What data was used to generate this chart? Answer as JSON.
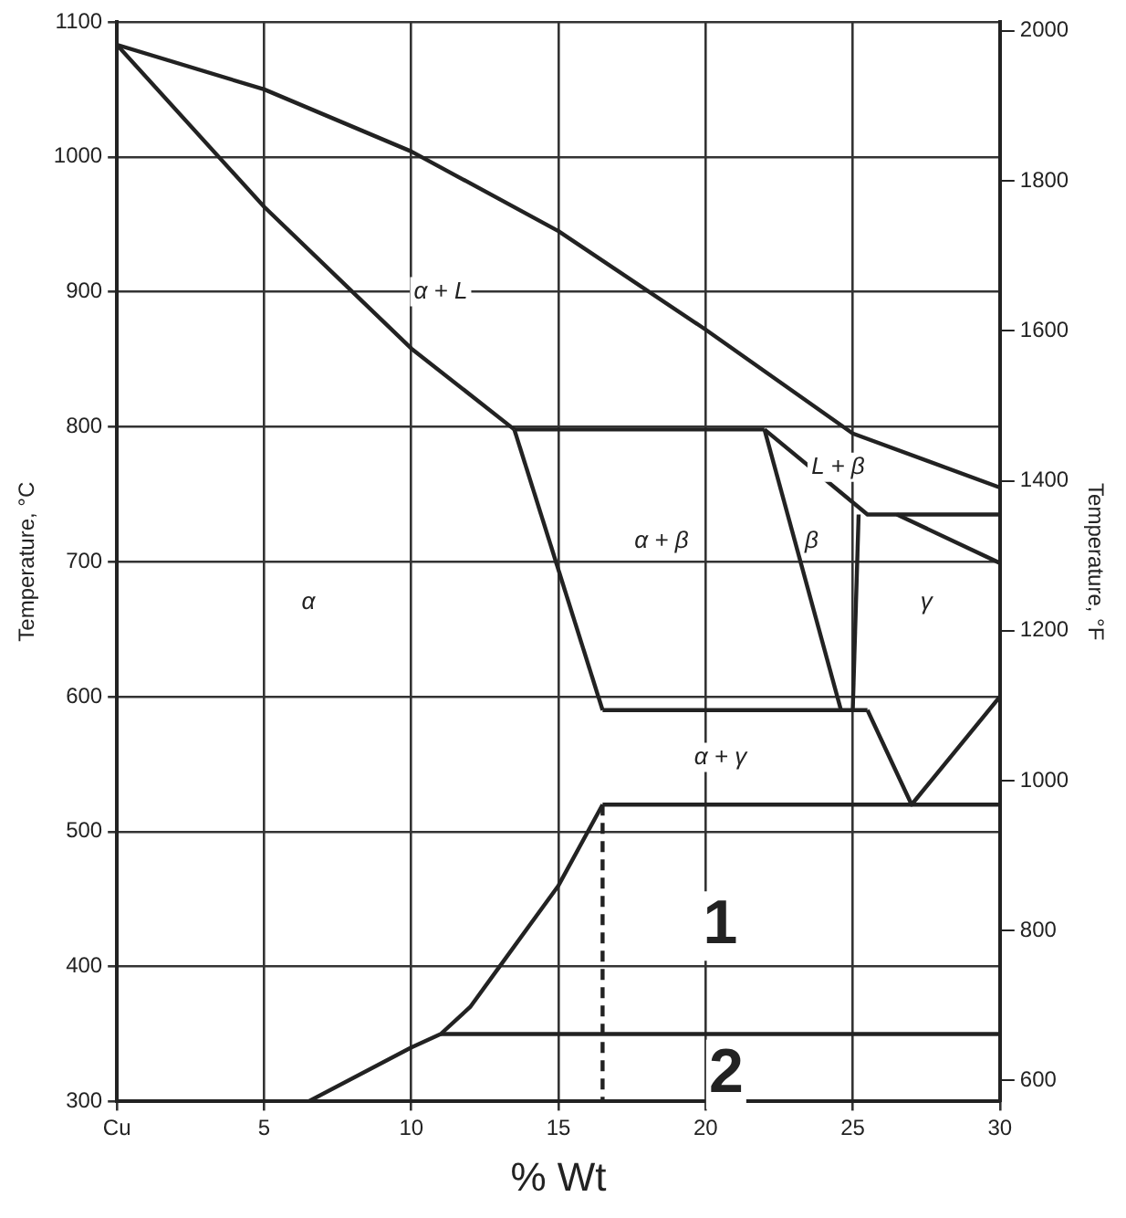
{
  "chart_data": {
    "type": "line",
    "xlabel": "% Wt",
    "ylabel": "Temperature, °C",
    "y2label": "Temperature, °F",
    "xlim": [
      0,
      30
    ],
    "xticks": [
      {
        "value": 0,
        "label": "Cu"
      },
      5,
      10,
      15,
      20,
      25,
      30
    ],
    "ylim": [
      300,
      1100
    ],
    "yticks": [
      300,
      400,
      500,
      600,
      700,
      800,
      900,
      1000,
      1100
    ],
    "y2lim": [
      572,
      2012
    ],
    "y2ticks": [
      600,
      800,
      1000,
      1200,
      1400,
      1600,
      1800,
      2000
    ],
    "grid": true,
    "legend": false,
    "marker": "none",
    "line_style": "solid",
    "series": [
      {
        "color": "#222222",
        "x": [
          0,
          5,
          10,
          15,
          20,
          25,
          30
        ],
        "values": [
          1083,
          1050,
          1004,
          945,
          872,
          795,
          755
        ]
      },
      {
        "color": "#222222",
        "x": [
          0,
          5,
          10,
          13.5
        ],
        "values": [
          1083,
          963,
          858,
          798
        ]
      },
      {
        "color": "#222222",
        "x": [
          13.5,
          16.5
        ],
        "values": [
          798,
          590
        ]
      },
      {
        "color": "#222222",
        "x": [
          13.5,
          22
        ],
        "values": [
          798,
          798
        ]
      },
      {
        "color": "#222222",
        "x": [
          22,
          24.6
        ],
        "values": [
          798,
          590
        ]
      },
      {
        "color": "#222222",
        "x": [
          22,
          25.5,
          30
        ],
        "values": [
          798,
          735,
          735
        ]
      },
      {
        "color": "#222222",
        "x": [
          26.5,
          30
        ],
        "values": [
          735,
          699
        ]
      },
      {
        "color": "#222222",
        "x": [
          25.2,
          25
        ],
        "values": [
          735,
          590
        ]
      },
      {
        "color": "#222222",
        "x": [
          16.5,
          25.5
        ],
        "values": [
          590,
          590
        ]
      },
      {
        "color": "#222222",
        "x": [
          25.5,
          27,
          30
        ],
        "values": [
          590,
          520,
          600
        ]
      },
      {
        "color": "#222222",
        "x": [
          16.5,
          30
        ],
        "values": [
          520,
          520
        ]
      },
      {
        "color": "#222222",
        "x": [
          16.5,
          15,
          13,
          12,
          11,
          10,
          6.5
        ],
        "values": [
          520,
          460,
          400,
          370,
          350,
          340,
          300
        ]
      },
      {
        "color": "#222222",
        "x": [
          11,
          30
        ],
        "values": [
          350,
          350
        ]
      },
      {
        "color": "#222222",
        "line_style": "dashed",
        "x": [
          16.5,
          16.5
        ],
        "values": [
          520,
          300
        ]
      }
    ],
    "annotations": [
      {
        "text": "α + L",
        "x": 11,
        "y": 900
      },
      {
        "text": "α",
        "x": 6.5,
        "y": 670
      },
      {
        "text": "α + β",
        "x": 18.5,
        "y": 715
      },
      {
        "text": "L + β",
        "x": 24.5,
        "y": 770
      },
      {
        "text": "β",
        "x": 23.6,
        "y": 715
      },
      {
        "text": "γ",
        "x": 27.5,
        "y": 670
      },
      {
        "text": "α + γ",
        "x": 20.5,
        "y": 555
      },
      {
        "text": "1",
        "x": 20.5,
        "y": 430
      },
      {
        "text": "2",
        "x": 20.7,
        "y": 320
      }
    ]
  }
}
